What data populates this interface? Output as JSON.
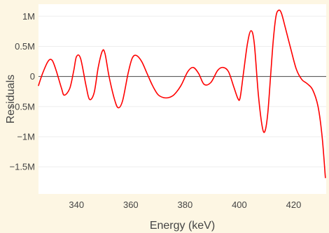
{
  "chart_data": {
    "type": "line",
    "title": "",
    "xlabel": "Energy (keV)",
    "ylabel": "Residuals",
    "xlim": [
      326,
      432
    ],
    "ylim": [
      -1.95,
      1.2
    ],
    "x_ticks": [
      340,
      360,
      380,
      400,
      420
    ],
    "x_tick_labels": [
      "340",
      "360",
      "380",
      "400",
      "420"
    ],
    "y_ticks": [
      1,
      0.5,
      0,
      -0.5,
      -1,
      -1.5
    ],
    "y_tick_labels": [
      "1M",
      "0.5M",
      "0",
      "−0.5M",
      "−1M",
      "−1.5M"
    ],
    "zero_line": true,
    "grid": "horizontal",
    "legend": "none",
    "colors": {
      "background": "#fdf6e3",
      "plot_background": "#ffffff",
      "line": "#ff0000",
      "gridline": "#eeeeee",
      "zero_line": "#444444",
      "text": "#444444"
    },
    "series": [
      {
        "values_unit": "M",
        "x": [
          326,
          327.5,
          329.5,
          331,
          332.5,
          334.5,
          335.5,
          337.5,
          339,
          340,
          341.5,
          343.5,
          344.8,
          346.5,
          348,
          349.5,
          350.5,
          352,
          354,
          355.4,
          357,
          359,
          360.5,
          362,
          364,
          366,
          368,
          370,
          372,
          374,
          376,
          378.5,
          381,
          383,
          385,
          387,
          389.5,
          392,
          394,
          396,
          398,
          399.5,
          400.3,
          401.5,
          403,
          404.3,
          405.5,
          407,
          408.5,
          409.5,
          410.5,
          411.5,
          412.5,
          413.5,
          414.5,
          415.5,
          417,
          419,
          421,
          423,
          425,
          427,
          429,
          430.5,
          431.7
        ],
        "y": [
          -0.15,
          0.05,
          0.25,
          0.27,
          0.1,
          -0.2,
          -0.31,
          -0.2,
          0.1,
          0.33,
          0.3,
          -0.15,
          -0.38,
          -0.27,
          0.15,
          0.42,
          0.38,
          0.0,
          -0.38,
          -0.52,
          -0.4,
          0.05,
          0.3,
          0.35,
          0.25,
          0.05,
          -0.15,
          -0.3,
          -0.35,
          -0.35,
          -0.3,
          -0.15,
          0.08,
          0.15,
          0.05,
          -0.13,
          -0.1,
          0.1,
          0.15,
          0.08,
          -0.18,
          -0.37,
          -0.35,
          0.05,
          0.55,
          0.76,
          0.55,
          -0.3,
          -0.85,
          -0.9,
          -0.6,
          0.0,
          0.6,
          1.0,
          1.1,
          1.05,
          0.8,
          0.45,
          0.12,
          -0.05,
          -0.12,
          -0.22,
          -0.5,
          -1.0,
          -1.68
        ]
      }
    ]
  }
}
